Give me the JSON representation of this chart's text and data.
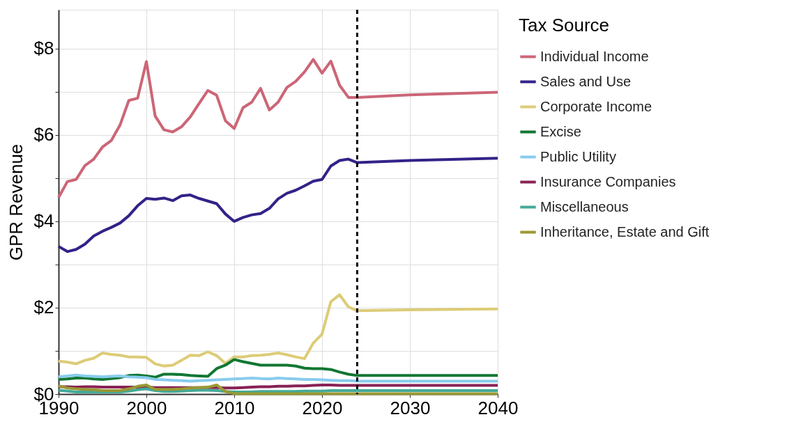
{
  "chart_data": {
    "type": "line",
    "ylabel": "GPR Revenue",
    "legend_title": "Tax Source",
    "xlim": [
      1990,
      2040
    ],
    "ylim": [
      0,
      8.9
    ],
    "xticks": [
      1990,
      2000,
      2010,
      2020,
      2030,
      2040
    ],
    "yticks": [
      {
        "value": 0,
        "label": "$0"
      },
      {
        "value": 1,
        "label": null
      },
      {
        "value": 2,
        "label": "$2"
      },
      {
        "value": 3,
        "label": null
      },
      {
        "value": 4,
        "label": "$4"
      },
      {
        "value": 5,
        "label": null
      },
      {
        "value": 6,
        "label": "$6"
      },
      {
        "value": 7,
        "label": null
      },
      {
        "value": 8,
        "label": "$8"
      }
    ],
    "grid": true,
    "legend": "right",
    "marker": "none",
    "line_style": "solid",
    "x": [
      1990,
      1991,
      1992,
      1993,
      1994,
      1995,
      1996,
      1997,
      1998,
      1999,
      2000,
      2001,
      2002,
      2003,
      2004,
      2005,
      2006,
      2007,
      2008,
      2009,
      2010,
      2011,
      2012,
      2013,
      2014,
      2015,
      2016,
      2017,
      2018,
      2019,
      2020,
      2021,
      2022,
      2023,
      2024,
      2030,
      2040
    ],
    "series": [
      {
        "name": "Individual Income",
        "color": "#cc6677",
        "values": [
          4.55,
          4.92,
          4.97,
          5.29,
          5.44,
          5.72,
          5.87,
          6.23,
          6.8,
          6.85,
          7.7,
          6.44,
          6.12,
          6.07,
          6.19,
          6.42,
          6.73,
          7.03,
          6.92,
          6.33,
          6.15,
          6.63,
          6.76,
          7.08,
          6.58,
          6.76,
          7.1,
          7.24,
          7.46,
          7.75,
          7.43,
          7.71,
          7.15,
          6.87,
          6.87,
          6.93,
          6.99
        ]
      },
      {
        "name": "Sales and Use",
        "color": "#332288",
        "values": [
          3.42,
          3.3,
          3.35,
          3.47,
          3.66,
          3.77,
          3.86,
          3.96,
          4.13,
          4.36,
          4.53,
          4.51,
          4.54,
          4.48,
          4.59,
          4.61,
          4.53,
          4.47,
          4.41,
          4.17,
          4.0,
          4.09,
          4.15,
          4.18,
          4.3,
          4.52,
          4.65,
          4.72,
          4.82,
          4.93,
          4.97,
          5.28,
          5.41,
          5.44,
          5.36,
          5.41,
          5.46
        ]
      },
      {
        "name": "Corporate Income",
        "color": "#ddcc77",
        "values": [
          0.76,
          0.74,
          0.7,
          0.78,
          0.83,
          0.95,
          0.92,
          0.9,
          0.86,
          0.86,
          0.85,
          0.7,
          0.65,
          0.67,
          0.78,
          0.9,
          0.89,
          0.98,
          0.89,
          0.71,
          0.86,
          0.86,
          0.89,
          0.9,
          0.92,
          0.95,
          0.91,
          0.86,
          0.82,
          1.18,
          1.39,
          2.14,
          2.3,
          2.02,
          1.93,
          1.95,
          1.97
        ]
      },
      {
        "name": "Excise",
        "color": "#117733",
        "values": [
          0.34,
          0.35,
          0.37,
          0.37,
          0.35,
          0.34,
          0.36,
          0.38,
          0.43,
          0.44,
          0.42,
          0.39,
          0.46,
          0.46,
          0.45,
          0.43,
          0.42,
          0.41,
          0.59,
          0.67,
          0.8,
          0.75,
          0.71,
          0.67,
          0.67,
          0.67,
          0.67,
          0.65,
          0.6,
          0.59,
          0.59,
          0.57,
          0.51,
          0.46,
          0.43,
          0.43,
          0.43
        ]
      },
      {
        "name": "Public Utility",
        "color": "#88ccee",
        "values": [
          0.4,
          0.42,
          0.44,
          0.42,
          0.41,
          0.4,
          0.41,
          0.42,
          0.4,
          0.39,
          0.38,
          0.34,
          0.33,
          0.32,
          0.31,
          0.3,
          0.31,
          0.32,
          0.33,
          0.34,
          0.35,
          0.36,
          0.37,
          0.36,
          0.35,
          0.37,
          0.36,
          0.35,
          0.34,
          0.34,
          0.33,
          0.32,
          0.31,
          0.31,
          0.3,
          0.3,
          0.3
        ]
      },
      {
        "name": "Insurance Companies",
        "color": "#882255",
        "values": [
          0.17,
          0.17,
          0.16,
          0.17,
          0.17,
          0.16,
          0.16,
          0.16,
          0.16,
          0.16,
          0.16,
          0.15,
          0.15,
          0.15,
          0.15,
          0.15,
          0.15,
          0.15,
          0.15,
          0.14,
          0.14,
          0.15,
          0.16,
          0.17,
          0.17,
          0.18,
          0.18,
          0.19,
          0.19,
          0.2,
          0.21,
          0.21,
          0.2,
          0.2,
          0.2,
          0.2,
          0.2
        ]
      },
      {
        "name": "Miscellaneous",
        "color": "#44aa99",
        "values": [
          0.09,
          0.07,
          0.05,
          0.05,
          0.05,
          0.05,
          0.05,
          0.05,
          0.07,
          0.1,
          0.12,
          0.08,
          0.06,
          0.06,
          0.07,
          0.08,
          0.09,
          0.09,
          0.08,
          0.06,
          0.05,
          0.05,
          0.05,
          0.06,
          0.06,
          0.06,
          0.06,
          0.06,
          0.07,
          0.07,
          0.07,
          0.08,
          0.08,
          0.08,
          0.08,
          0.08,
          0.08
        ]
      },
      {
        "name": "Inheritance, Estate and Gift",
        "color": "#999933",
        "values": [
          0.19,
          0.14,
          0.12,
          0.11,
          0.1,
          0.08,
          0.08,
          0.08,
          0.12,
          0.18,
          0.21,
          0.11,
          0.11,
          0.11,
          0.12,
          0.14,
          0.15,
          0.16,
          0.21,
          0.06,
          0.01,
          0.01,
          0.01,
          0.01,
          0.01,
          0.01,
          0.01,
          0.01,
          0.01,
          0.01,
          0.01,
          0.01,
          0.01,
          0.01,
          0.01,
          0.01,
          0.01
        ]
      }
    ],
    "ref_lines": [
      {
        "axis": "x",
        "value": 2024,
        "label": null,
        "color": "#000000",
        "line_style": "dashed"
      }
    ]
  }
}
